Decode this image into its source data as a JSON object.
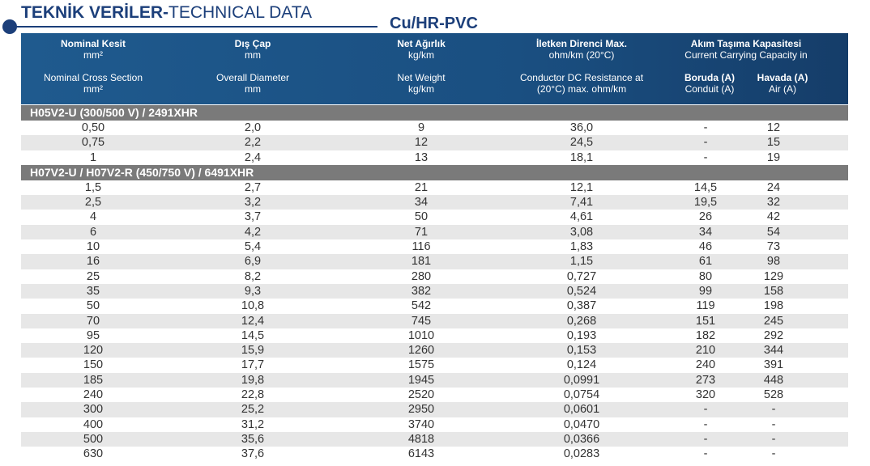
{
  "title": {
    "bold": "TEKNİK VERİLER-",
    "normal": "TECHNICAL DATA"
  },
  "subtitle": "Cu/HR-PVC",
  "header": {
    "col1": {
      "tr": "Nominal Kesit",
      "tr_unit": "mm²",
      "en": "Nominal Cross Section",
      "en_unit": "mm²"
    },
    "col2": {
      "tr": "Dış Çap",
      "tr_unit": "mm",
      "en": "Overall Diameter",
      "en_unit": "mm"
    },
    "col3": {
      "tr": "Net Ağırlık",
      "tr_unit": "kg/km",
      "en": "Net Weight",
      "en_unit": "kg/km"
    },
    "col4": {
      "tr": "İletken Direnci Max.",
      "tr_unit": "ohm/km (20°C)",
      "en": "Conductor DC Resistance at",
      "en_unit": "(20°C) max. ohm/km"
    },
    "col5": {
      "tr": "Akım Taşıma Kapasitesi",
      "en_sub": "Current Carrying Capacity in"
    },
    "col5a": {
      "tr": "Boruda (A)",
      "en": "Conduit (A)"
    },
    "col5b": {
      "tr": "Havada (A)",
      "en": "Air (A)"
    }
  },
  "groups": [
    {
      "label": "H05V2-U (300/500 V) / 2491XHR",
      "rows": [
        [
          "0,50",
          "2,0",
          "9",
          "36,0",
          "-",
          "12"
        ],
        [
          "0,75",
          "2,2",
          "12",
          "24,5",
          "-",
          "15"
        ],
        [
          "1",
          "2,4",
          "13",
          "18,1",
          "-",
          "19"
        ]
      ]
    },
    {
      "label": "H07V2-U / H07V2-R (450/750 V) / 6491XHR",
      "rows": [
        [
          "1,5",
          "2,7",
          "21",
          "12,1",
          "14,5",
          "24"
        ],
        [
          "2,5",
          "3,2",
          "34",
          "7,41",
          "19,5",
          "32"
        ],
        [
          "4",
          "3,7",
          "50",
          "4,61",
          "26",
          "42"
        ],
        [
          "6",
          "4,2",
          "71",
          "3,08",
          "34",
          "54"
        ],
        [
          "10",
          "5,4",
          "116",
          "1,83",
          "46",
          "73"
        ],
        [
          "16",
          "6,9",
          "181",
          "1,15",
          "61",
          "98"
        ],
        [
          "25",
          "8,2",
          "280",
          "0,727",
          "80",
          "129"
        ],
        [
          "35",
          "9,3",
          "382",
          "0,524",
          "99",
          "158"
        ],
        [
          "50",
          "10,8",
          "542",
          "0,387",
          "119",
          "198"
        ],
        [
          "70",
          "12,4",
          "745",
          "0,268",
          "151",
          "245"
        ],
        [
          "95",
          "14,5",
          "1010",
          "0,193",
          "182",
          "292"
        ],
        [
          "120",
          "15,9",
          "1260",
          "0,153",
          "210",
          "344"
        ],
        [
          "150",
          "17,7",
          "1575",
          "0,124",
          "240",
          "391"
        ],
        [
          "185",
          "19,8",
          "1945",
          "0,0991",
          "273",
          "448"
        ],
        [
          "240",
          "22,8",
          "2520",
          "0,0754",
          "320",
          "528"
        ],
        [
          "300",
          "25,2",
          "2950",
          "0,0601",
          "-",
          "-"
        ],
        [
          "400",
          "31,2",
          "3740",
          "0,0470",
          "-",
          "-"
        ],
        [
          "500",
          "35,6",
          "4818",
          "0,0366",
          "-",
          "-"
        ],
        [
          "630",
          "37,6",
          "6143",
          "0,0283",
          "-",
          "-"
        ]
      ]
    }
  ]
}
